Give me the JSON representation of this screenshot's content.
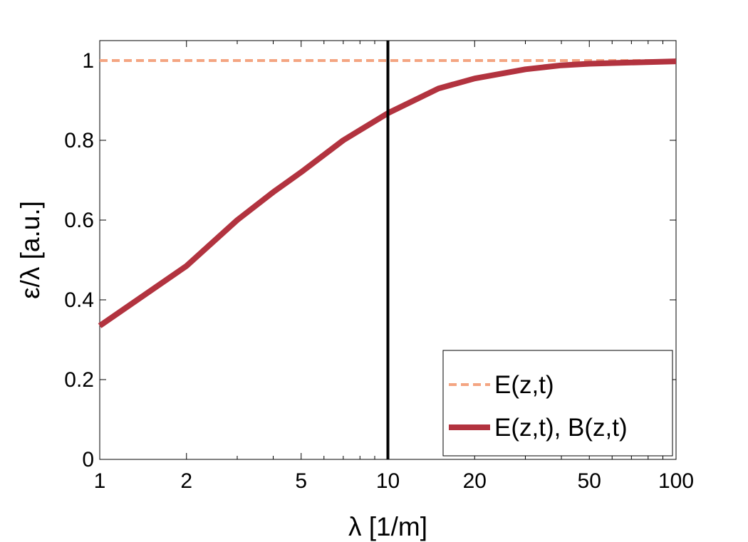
{
  "chart_data": {
    "type": "line",
    "xscale": "log",
    "xlim": [
      1,
      100
    ],
    "ylim": [
      0,
      1.05
    ],
    "xlabel": "λ [1/m]",
    "ylabel": "ε/λ [a.u.]",
    "grid": false,
    "legend_position": "bottom-right",
    "xticks": [
      1,
      2,
      5,
      10,
      20,
      50,
      100
    ],
    "xtick_labels": [
      "1",
      "2",
      "5",
      "10",
      "20",
      "50",
      "100"
    ],
    "yticks": [
      0,
      0.2,
      0.4,
      0.6,
      0.8,
      1
    ],
    "ytick_labels": [
      "0",
      "0.2",
      "0.4",
      "0.6",
      "0.8",
      "1"
    ],
    "vline": {
      "x": 10,
      "color": "#000000"
    },
    "series": [
      {
        "name": "E(z,t)",
        "color": "#F4A582",
        "style": "dashed",
        "x": [
          1,
          100
        ],
        "y": [
          1.0,
          1.0
        ]
      },
      {
        "name": "E(z,t), B(z,t)",
        "color": "#B2333F",
        "style": "solid",
        "x": [
          1,
          2,
          3,
          4,
          5,
          7,
          10,
          15,
          20,
          30,
          40,
          50,
          70,
          100
        ],
        "y": [
          0.335,
          0.485,
          0.6,
          0.67,
          0.72,
          0.8,
          0.868,
          0.93,
          0.955,
          0.978,
          0.988,
          0.992,
          0.995,
          0.998
        ]
      }
    ]
  }
}
